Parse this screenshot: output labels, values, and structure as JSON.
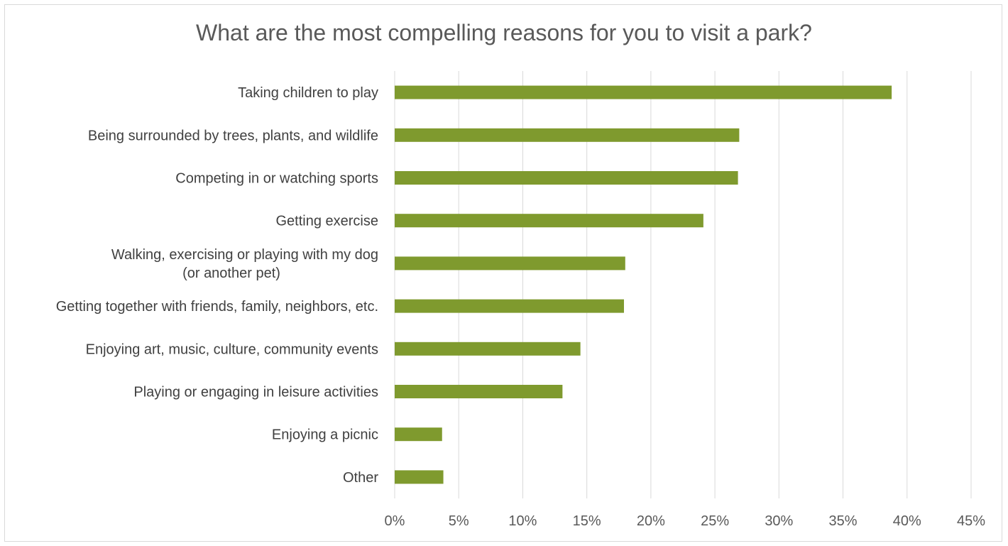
{
  "chart_data": {
    "type": "bar",
    "orientation": "horizontal",
    "title": "What are the most compelling reasons for you to visit a park?",
    "xlabel": "",
    "ylabel": "",
    "categories": [
      [
        "Taking children to play"
      ],
      [
        "Being surrounded by trees, plants, and wildlife"
      ],
      [
        "Competing in or watching sports"
      ],
      [
        "Getting exercise"
      ],
      [
        "Walking, exercising or playing with my dog",
        "(or another pet)"
      ],
      [
        "Getting together with friends, family, neighbors, etc."
      ],
      [
        "Enjoying art, music, culture, community events"
      ],
      [
        "Playing or engaging in leisure activities"
      ],
      [
        "Enjoying a picnic"
      ],
      [
        "Other"
      ]
    ],
    "values": [
      38.8,
      26.9,
      26.8,
      24.1,
      18.0,
      17.9,
      14.5,
      13.1,
      3.7,
      3.8
    ],
    "xlim": [
      0,
      45
    ],
    "ticks": [
      0,
      5,
      10,
      15,
      20,
      25,
      30,
      35,
      40,
      45
    ],
    "tick_labels": [
      "0%",
      "5%",
      "10%",
      "15%",
      "20%",
      "25%",
      "30%",
      "35%",
      "40%",
      "45%"
    ],
    "grid": true,
    "legend": "none",
    "colors": {
      "bar": "#7f9a2e",
      "grid": "#d9d9d9",
      "title": "#595959",
      "label": "#404040"
    }
  }
}
